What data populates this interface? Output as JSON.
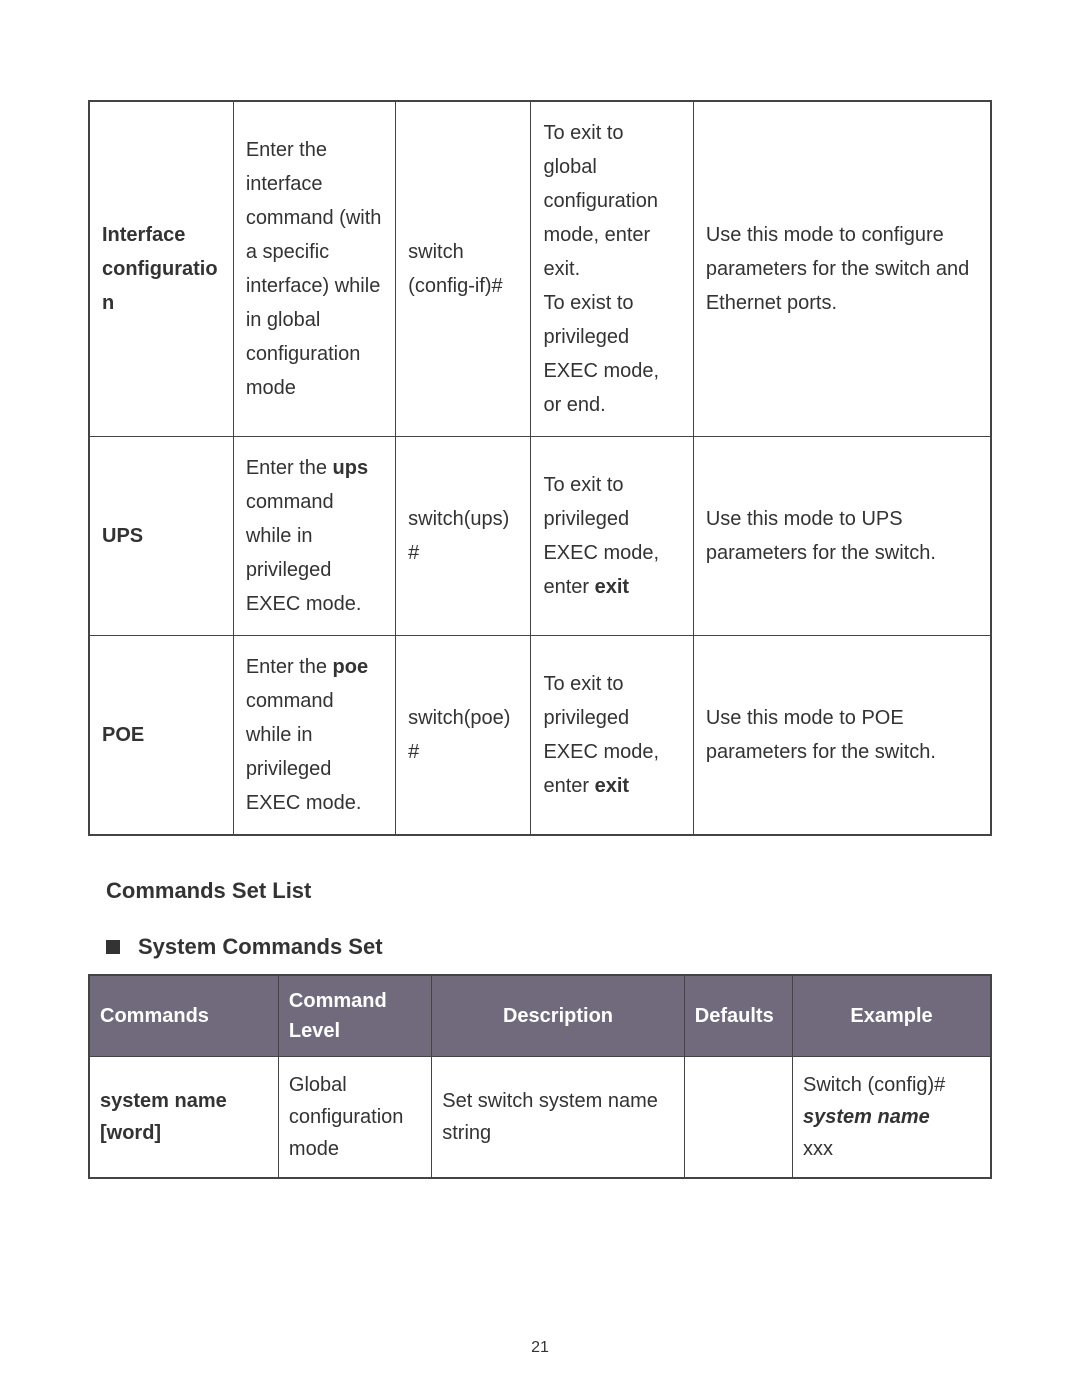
{
  "modeTable": {
    "columnWidths": [
      "16%",
      "18%",
      "15%",
      "18%",
      "33%"
    ],
    "rows": [
      {
        "mode": "Interface configuration",
        "access_prefix": "Enter the interface command (with a specific interface) while in global configuration mode",
        "prompt": "switch (config-if)#",
        "exit_prefix": "To exit to global configuration mode, enter exit.",
        "exit_suffix": "To exist to privileged EXEC mode, or end.",
        "about": "Use this mode to configure parameters for the switch and Ethernet ports."
      },
      {
        "mode": "UPS",
        "access_prefix": "Enter the ",
        "access_bold": "ups",
        "access_suffix": " command while in privileged EXEC mode.",
        "prompt": "switch(ups)#",
        "exit_prefix": "To exit to privileged EXEC mode, enter ",
        "exit_bold": "exit",
        "about": "Use this mode to UPS parameters for the switch."
      },
      {
        "mode": "POE",
        "access_prefix": "Enter the ",
        "access_bold": "poe",
        "access_suffix": " command while in privileged EXEC mode.",
        "prompt": "switch(poe)#",
        "exit_prefix": "To exit to privileged EXEC mode, enter ",
        "exit_bold": "exit",
        "about": "Use this mode to POE parameters for the switch."
      }
    ]
  },
  "sectionHeading": "Commands Set List",
  "subHeading": "System Commands Set",
  "cmdTable": {
    "columnWidths": [
      "21%",
      "17%",
      "28%",
      "12%",
      "22%"
    ],
    "headers": [
      "Commands",
      "Command Level",
      "Description",
      "Defaults",
      "Example"
    ],
    "headerBg": "#706a7c",
    "headerColor": "#ffffff",
    "rows": [
      {
        "command": "system name [word]",
        "level": "Global configuration mode",
        "description": "Set switch system name string",
        "defaults": "",
        "example_line1": "Switch (config)#",
        "example_cmd": "system name",
        "example_line3": "xxx"
      }
    ]
  },
  "pageNumber": "21"
}
